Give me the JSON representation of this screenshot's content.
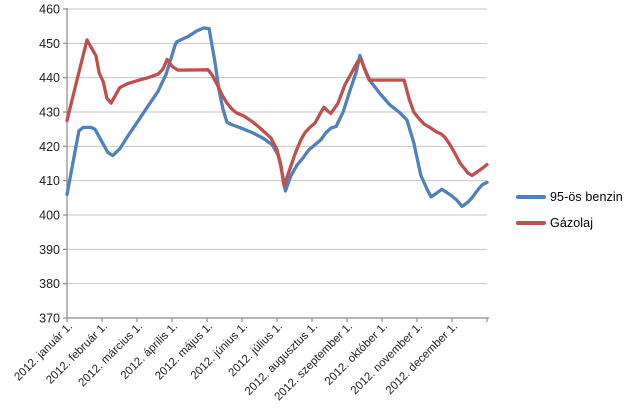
{
  "chart_data": {
    "type": "line",
    "title": "",
    "x_unit": "months_since_2012_jan_1",
    "categories": [
      "2012. január 1.",
      "2012. február 1.",
      "2012. március 1.",
      "2012. április 1.",
      "2012. május 1.",
      "2012. június 1.",
      "2012. július 1.",
      "2012. augusztus 1.",
      "2012. szeptember 1.",
      "2012. október 1.",
      "2012. november 1.",
      "2012. december 1."
    ],
    "y_axis": {
      "min": 370,
      "max": 460,
      "step": 10,
      "ticks": [
        370,
        380,
        390,
        400,
        410,
        420,
        430,
        440,
        450,
        460
      ]
    },
    "grid": true,
    "legend_position": "right",
    "colors": {
      "gridline": "#C6C6C6",
      "axis": "#8C8C8C",
      "text": "#1f1f1f"
    },
    "series": [
      {
        "name": "95-ös benzin",
        "color": "#4F81BD",
        "points": [
          [
            0,
            406
          ],
          [
            0.34,
            424.5
          ],
          [
            0.46,
            425.5
          ],
          [
            0.69,
            425.5
          ],
          [
            0.8,
            425
          ],
          [
            1.0,
            421.3
          ],
          [
            1.17,
            418.2
          ],
          [
            1.31,
            417.3
          ],
          [
            1.51,
            419.3
          ],
          [
            1.74,
            423
          ],
          [
            2.03,
            427.4
          ],
          [
            2.31,
            431.7
          ],
          [
            2.6,
            436
          ],
          [
            2.83,
            441
          ],
          [
            3.09,
            449.5
          ],
          [
            3.14,
            450.5
          ],
          [
            3.46,
            452
          ],
          [
            3.69,
            453.5
          ],
          [
            3.91,
            454.5
          ],
          [
            4.06,
            454.3
          ],
          [
            4.23,
            444.3
          ],
          [
            4.34,
            436.5
          ],
          [
            4.46,
            430.7
          ],
          [
            4.57,
            427
          ],
          [
            4.69,
            426.4
          ],
          [
            5.03,
            425.1
          ],
          [
            5.31,
            423.9
          ],
          [
            5.6,
            422.4
          ],
          [
            5.86,
            420.5
          ],
          [
            6.03,
            417.6
          ],
          [
            6.11,
            414
          ],
          [
            6.24,
            407
          ],
          [
            6.4,
            411.5
          ],
          [
            6.57,
            414.5
          ],
          [
            6.74,
            416.6
          ],
          [
            6.91,
            419
          ],
          [
            7.09,
            420.5
          ],
          [
            7.26,
            422
          ],
          [
            7.4,
            424
          ],
          [
            7.54,
            425.3
          ],
          [
            7.69,
            425.8
          ],
          [
            7.89,
            430
          ],
          [
            8.11,
            437
          ],
          [
            8.26,
            441.5
          ],
          [
            8.37,
            446.5
          ],
          [
            8.51,
            442.5
          ],
          [
            8.66,
            439.1
          ],
          [
            8.94,
            435.4
          ],
          [
            9.23,
            432
          ],
          [
            9.51,
            429.8
          ],
          [
            9.71,
            427.7
          ],
          [
            9.91,
            421
          ],
          [
            10.11,
            411.6
          ],
          [
            10.29,
            407.5
          ],
          [
            10.4,
            405.3
          ],
          [
            10.54,
            406.2
          ],
          [
            10.71,
            407.5
          ],
          [
            10.86,
            406.5
          ],
          [
            11.0,
            405.5
          ],
          [
            11.14,
            404.3
          ],
          [
            11.29,
            402.5
          ],
          [
            11.46,
            403.8
          ],
          [
            11.57,
            405
          ],
          [
            11.71,
            407
          ],
          [
            11.86,
            408.8
          ],
          [
            12.0,
            409.5
          ]
        ]
      },
      {
        "name": "Gázolaj",
        "color": "#C0504D",
        "points": [
          [
            0,
            427.5
          ],
          [
            0.23,
            437
          ],
          [
            0.57,
            451
          ],
          [
            0.83,
            446.3
          ],
          [
            0.92,
            441.4
          ],
          [
            1.04,
            438.7
          ],
          [
            1.14,
            434
          ],
          [
            1.26,
            432.6
          ],
          [
            1.51,
            437.1
          ],
          [
            1.74,
            438.3
          ],
          [
            2.03,
            439.2
          ],
          [
            2.31,
            440
          ],
          [
            2.6,
            441
          ],
          [
            2.74,
            442.5
          ],
          [
            2.86,
            445.3
          ],
          [
            3.0,
            443.3
          ],
          [
            3.17,
            442.2
          ],
          [
            4.03,
            442.3
          ],
          [
            4.14,
            440.9
          ],
          [
            4.29,
            438
          ],
          [
            4.43,
            435
          ],
          [
            4.57,
            432.6
          ],
          [
            4.71,
            430.9
          ],
          [
            4.83,
            429.8
          ],
          [
            5.06,
            428.8
          ],
          [
            5.29,
            427.2
          ],
          [
            5.46,
            425.8
          ],
          [
            5.66,
            424
          ],
          [
            5.83,
            422.4
          ],
          [
            6.0,
            419
          ],
          [
            6.11,
            414.5
          ],
          [
            6.2,
            408.6
          ],
          [
            6.37,
            413.5
          ],
          [
            6.54,
            418.5
          ],
          [
            6.69,
            422
          ],
          [
            6.8,
            424
          ],
          [
            6.94,
            425.5
          ],
          [
            7.09,
            426.8
          ],
          [
            7.23,
            429.5
          ],
          [
            7.34,
            431.4
          ],
          [
            7.46,
            430.2
          ],
          [
            7.54,
            429.6
          ],
          [
            7.74,
            432.5
          ],
          [
            7.94,
            437.9
          ],
          [
            8.11,
            441
          ],
          [
            8.31,
            444.8
          ],
          [
            8.4,
            445.3
          ],
          [
            8.54,
            441.5
          ],
          [
            8.63,
            439.3
          ],
          [
            9.63,
            439.3
          ],
          [
            9.77,
            434
          ],
          [
            9.91,
            430
          ],
          [
            10.03,
            428.4
          ],
          [
            10.2,
            426.5
          ],
          [
            10.37,
            425.5
          ],
          [
            10.54,
            424.3
          ],
          [
            10.69,
            423.6
          ],
          [
            10.8,
            422.6
          ],
          [
            10.94,
            420.5
          ],
          [
            11.11,
            417.5
          ],
          [
            11.23,
            415.1
          ],
          [
            11.46,
            412.2
          ],
          [
            11.57,
            411.5
          ],
          [
            11.71,
            412.5
          ],
          [
            11.89,
            413.8
          ],
          [
            12.0,
            414.7
          ]
        ]
      }
    ]
  }
}
